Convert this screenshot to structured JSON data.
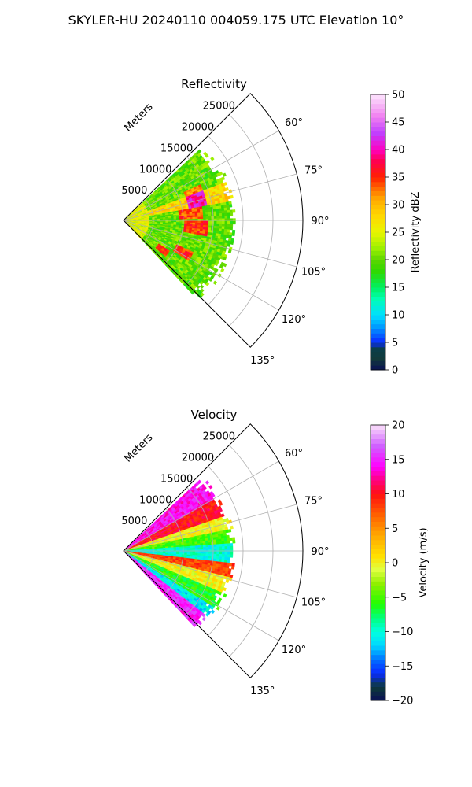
{
  "figure": {
    "title": "SKYLER-HU  20240110  004059.175 UTC Elevation 10°"
  },
  "chart_data": [
    {
      "type": "heatmap",
      "projection": "polar-sector",
      "title": "Reflectivity",
      "range_label": "Meters",
      "range_ticks": [
        5000,
        10000,
        15000,
        20000,
        25000
      ],
      "range_max": 30000,
      "azimuth_ticks": [
        "60°",
        "75°",
        "90°",
        "105°",
        "120°",
        "135°"
      ],
      "azimuth_range_deg": [
        45,
        135
      ],
      "data_sector_deg": [
        47,
        136
      ],
      "data_max_range": 17500,
      "grid": true,
      "colorbar": {
        "label": "Reflectivity dBZ",
        "min": 0,
        "max": 50,
        "ticks": [
          "0",
          "5",
          "10",
          "15",
          "20",
          "25",
          "30",
          "35",
          "40",
          "45",
          "50"
        ]
      },
      "regions": [
        {
          "description": "dominant background",
          "value_dbz": 20
        },
        {
          "description": "band near 75°",
          "value_dbz": 28
        },
        {
          "description": "cores near 90° and 100°",
          "value_dbz": 36
        },
        {
          "description": "core near 120° at mid range",
          "value_dbz": 35
        }
      ]
    },
    {
      "type": "heatmap",
      "projection": "polar-sector",
      "title": "Velocity",
      "range_label": "Meters",
      "range_ticks": [
        5000,
        10000,
        15000,
        20000,
        25000
      ],
      "range_max": 30000,
      "azimuth_ticks": [
        "60°",
        "75°",
        "90°",
        "105°",
        "120°",
        "135°"
      ],
      "azimuth_range_deg": [
        45,
        135
      ],
      "data_sector_deg": [
        47,
        136
      ],
      "data_max_range": 17500,
      "grid": true,
      "colorbar": {
        "label": "Velocity (m/s)",
        "min": -20,
        "max": 20,
        "ticks": [
          "−20",
          "−15",
          "−10",
          "−5",
          "0",
          "5",
          "10",
          "15",
          "20"
        ]
      },
      "bands": [
        {
          "from_deg": 47,
          "value_ms": 14
        },
        {
          "from_deg": 60,
          "value_ms": 10
        },
        {
          "from_deg": 70,
          "value_ms": 0
        },
        {
          "from_deg": 78,
          "value_ms": -5
        },
        {
          "from_deg": 86,
          "value_ms": -10
        },
        {
          "from_deg": 96,
          "value_ms": 8
        },
        {
          "from_deg": 104,
          "value_ms": 0
        },
        {
          "from_deg": 112,
          "value_ms": -6
        },
        {
          "from_deg": 122,
          "value_ms": -11
        },
        {
          "from_deg": 128,
          "value_ms": 15
        }
      ]
    }
  ]
}
